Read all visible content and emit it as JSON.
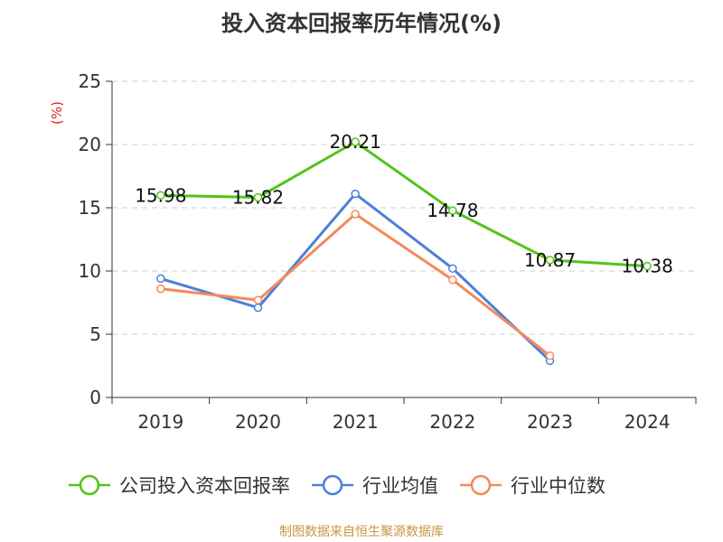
{
  "chart_data": {
    "type": "line",
    "title": "投入资本回报率历年情况(%)",
    "ylabel": "(%)",
    "categories": [
      "2019",
      "2020",
      "2021",
      "2022",
      "2023",
      "2024"
    ],
    "ylim": [
      0,
      25
    ],
    "yticks": [
      0,
      5,
      10,
      15,
      20,
      25
    ],
    "grid": true,
    "legend_position": "bottom",
    "series": [
      {
        "name": "公司投入资本回报率",
        "color": "#52c41a",
        "values": [
          15.98,
          15.82,
          20.21,
          14.78,
          10.87,
          10.38
        ],
        "show_labels": true
      },
      {
        "name": "行业均值",
        "color": "#4e7fd9",
        "values": [
          9.4,
          7.1,
          16.1,
          10.2,
          2.9,
          null
        ],
        "show_labels": false
      },
      {
        "name": "行业中位数",
        "color": "#f5895a",
        "values": [
          8.6,
          7.7,
          14.5,
          9.3,
          3.3,
          null
        ],
        "show_labels": false
      }
    ]
  },
  "footer": {
    "source": "制图数据来自恒生聚源数据库",
    "source_color": "#c8963e"
  },
  "ylabel_color": "#e02020"
}
